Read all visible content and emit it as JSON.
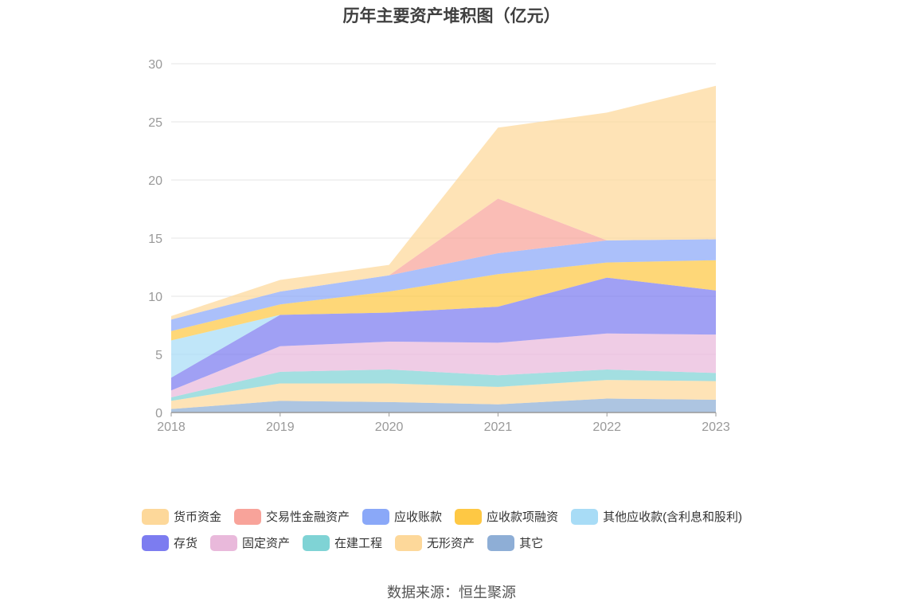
{
  "title": "历年主要资产堆积图（亿元）",
  "source": "数据来源：恒生聚源",
  "chart_data": {
    "type": "area",
    "stacked": true,
    "x": [
      "2018",
      "2019",
      "2020",
      "2021",
      "2022",
      "2023"
    ],
    "ylim": [
      0,
      30
    ],
    "yticks": [
      0,
      5,
      10,
      15,
      20,
      25,
      30
    ],
    "grid": true,
    "legend_position": "bottom",
    "series": [
      {
        "name": "其它",
        "color": "#8eaed6",
        "values": [
          0.3,
          1.0,
          0.9,
          0.7,
          1.2,
          1.1
        ]
      },
      {
        "name": "无形资产",
        "color": "#fdd89a",
        "values": [
          0.7,
          1.5,
          1.6,
          1.5,
          1.6,
          1.6
        ]
      },
      {
        "name": "在建工程",
        "color": "#7fd3d5",
        "values": [
          0.3,
          1.0,
          1.2,
          1.0,
          0.9,
          0.7
        ]
      },
      {
        "name": "固定资产",
        "color": "#e9b9db",
        "values": [
          0.6,
          2.2,
          2.4,
          2.8,
          3.1,
          3.3
        ]
      },
      {
        "name": "存货",
        "color": "#7c7cf0",
        "values": [
          1.1,
          2.7,
          2.5,
          3.1,
          4.8,
          3.8
        ]
      },
      {
        "name": "其他应收款(含利息和股利)",
        "color": "#a8dcf6",
        "values": [
          3.2,
          0.0,
          0.0,
          0.0,
          0.0,
          0.0
        ]
      },
      {
        "name": "应收款项融资",
        "color": "#fec844",
        "values": [
          0.8,
          0.9,
          1.8,
          2.8,
          1.3,
          2.6
        ]
      },
      {
        "name": "应收账款",
        "color": "#8aa8f8",
        "values": [
          1.0,
          1.1,
          1.4,
          1.8,
          1.9,
          1.8
        ]
      },
      {
        "name": "交易性金融资产",
        "color": "#f8a39a",
        "values": [
          0.0,
          0.0,
          0.0,
          4.7,
          0.0,
          0.0
        ]
      },
      {
        "name": "货币资金",
        "color": "#fdd89a",
        "values": [
          0.3,
          1.0,
          0.9,
          6.1,
          11.0,
          13.2
        ]
      }
    ]
  },
  "legend": {
    "row1": [
      "货币资金",
      "交易性金融资产",
      "应收账款",
      "应收款项融资",
      "其他应收款(含利息和股利)"
    ],
    "row2": [
      "存货",
      "固定资产",
      "在建工程",
      "无形资产",
      "其它"
    ]
  }
}
